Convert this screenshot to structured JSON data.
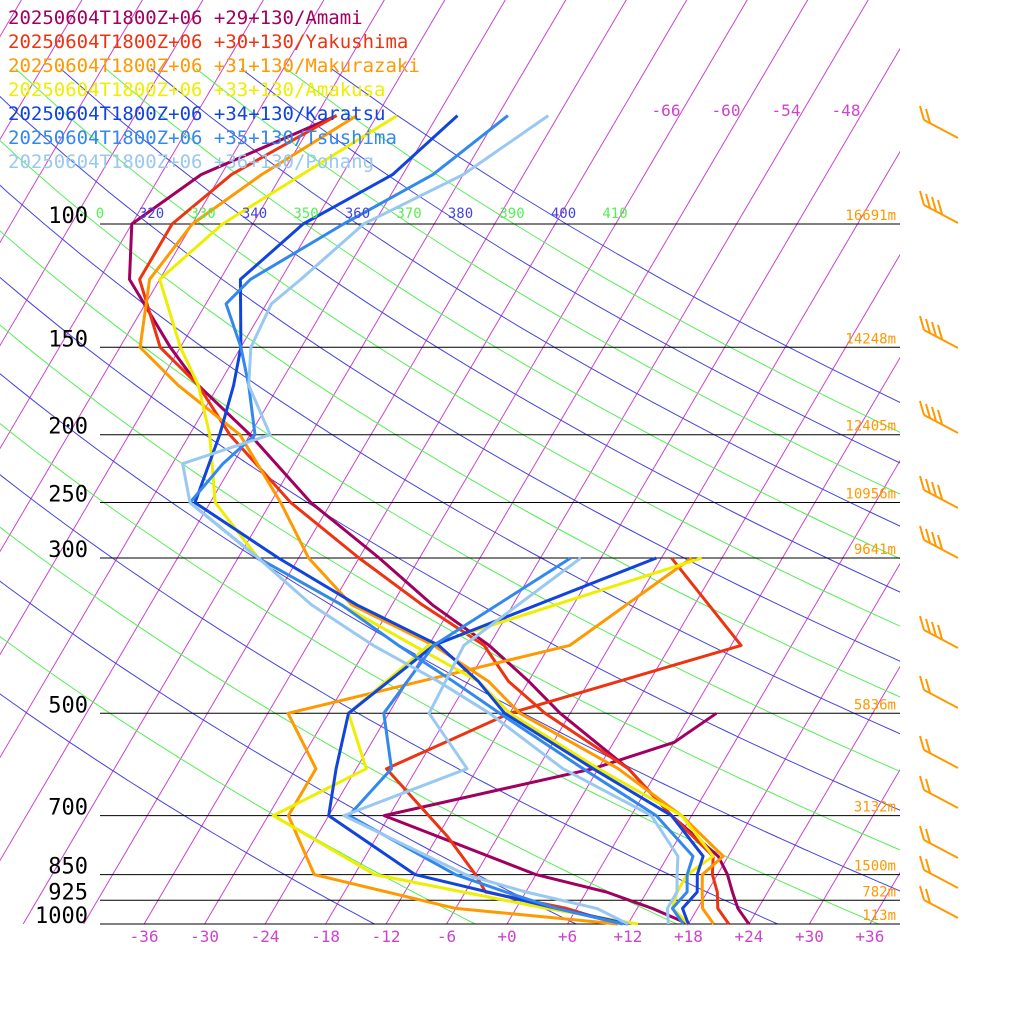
{
  "legend": [
    {
      "label": "20250604T1800Z+06 +29+130/Amami",
      "color": "#a0005f"
    },
    {
      "label": "20250604T1800Z+06 +30+130/Yakushima",
      "color": "#ee3311"
    },
    {
      "label": "20250604T1800Z+06 +31+130/Makurazaki",
      "color": "#ff9900"
    },
    {
      "label": "20250604T1800Z+06 +33+130/Amakusa",
      "color": "#eeee00"
    },
    {
      "label": "20250604T1800Z+06 +34+130/Karatsu",
      "color": "#1144dd"
    },
    {
      "label": "20250604T1800Z+06 +35+130/Tsushima",
      "color": "#3388ee"
    },
    {
      "label": "20250604T1800Z+06 +36+130/Pohang",
      "color": "#99c8f0"
    }
  ],
  "chart_data": {
    "type": "line",
    "chart_kind": "skew-T log-p sounding",
    "y_axis": {
      "unit": "hPa",
      "scale": "log",
      "range": [
        1000,
        100
      ],
      "labels": [
        "100",
        "150",
        "200",
        "250",
        "300",
        "500",
        "700",
        "850",
        "925",
        "1000"
      ],
      "levels": [
        100,
        150,
        200,
        250,
        300,
        500,
        700,
        850,
        925,
        1000
      ]
    },
    "x_axis": {
      "unit": "°C",
      "skewed": true,
      "tick_labels": [
        "-36",
        "-30",
        "-24",
        "-18",
        "-12",
        "-6",
        "+0",
        "+6",
        "+12",
        "+18",
        "+24",
        "+30",
        "+36"
      ],
      "tick_values": [
        -36,
        -30,
        -24,
        -18,
        -12,
        -6,
        0,
        6,
        12,
        18,
        24,
        30,
        36
      ],
      "upper_labels": [
        "-66",
        "-60",
        "-54",
        "-48"
      ]
    },
    "theta_labels": [
      {
        "text": "0",
        "color": "#55ee55"
      },
      {
        "text": "320",
        "color": "#4444dd"
      },
      {
        "text": "330",
        "color": "#55ee55"
      },
      {
        "text": "340",
        "color": "#4444dd"
      },
      {
        "text": "350",
        "color": "#55ee55"
      },
      {
        "text": "360",
        "color": "#4444dd"
      },
      {
        "text": "370",
        "color": "#55ee55"
      },
      {
        "text": "380",
        "color": "#4444dd"
      },
      {
        "text": "390",
        "color": "#55ee55"
      },
      {
        "text": "400",
        "color": "#4444dd"
      },
      {
        "text": "410",
        "color": "#55ee55"
      }
    ],
    "heights": [
      {
        "p": 100,
        "label": "16691m"
      },
      {
        "p": 150,
        "label": "14248m"
      },
      {
        "p": 200,
        "label": "12405m"
      },
      {
        "p": 250,
        "label": "10956m"
      },
      {
        "p": 300,
        "label": "9641m"
      },
      {
        "p": 500,
        "label": "5836m"
      },
      {
        "p": 700,
        "label": "3132m"
      },
      {
        "p": 850,
        "label": "1500m"
      },
      {
        "p": 925,
        "label": "782m"
      },
      {
        "p": 1000,
        "label": "113m"
      }
    ],
    "series": [
      {
        "name": "20250604T1800Z+06 +29+130/Amami",
        "color": "#a0005f",
        "temperature": [
          [
            1000,
            24.0
          ],
          [
            950,
            22.0
          ],
          [
            900,
            20.5
          ],
          [
            850,
            19.0
          ],
          [
            800,
            17.0
          ],
          [
            700,
            10.0
          ],
          [
            600,
            3.0
          ],
          [
            500,
            -7.0
          ],
          [
            450,
            -12.0
          ],
          [
            400,
            -18.0
          ],
          [
            350,
            -26.0
          ],
          [
            300,
            -34.0
          ],
          [
            250,
            -44.0
          ],
          [
            200,
            -54.0
          ],
          [
            170,
            -62.0
          ],
          [
            150,
            -67.0
          ],
          [
            120,
            -75.0
          ],
          [
            100,
            -78.0
          ],
          [
            85,
            -74.0
          ],
          [
            70,
            -64.0
          ]
        ],
        "dewpoint": [
          [
            1000,
            18.0
          ],
          [
            950,
            13.5
          ],
          [
            900,
            8.0
          ],
          [
            850,
            0.0
          ],
          [
            700,
            -18.5
          ],
          [
            600,
            -0.5
          ],
          [
            550,
            6.0
          ],
          [
            500,
            8.5
          ]
        ]
      },
      {
        "name": "20250604T1800Z+06 +30+130/Yakushima",
        "color": "#ee3311",
        "temperature": [
          [
            1000,
            22.0
          ],
          [
            950,
            20.0
          ],
          [
            900,
            19.0
          ],
          [
            850,
            17.5
          ],
          [
            800,
            16.5
          ],
          [
            700,
            10.0
          ],
          [
            600,
            3.0
          ],
          [
            500,
            -8.5
          ],
          [
            450,
            -14.0
          ],
          [
            400,
            -18.5
          ],
          [
            350,
            -27.0
          ],
          [
            300,
            -36.0
          ],
          [
            250,
            -46.0
          ],
          [
            200,
            -56.0
          ],
          [
            170,
            -62.0
          ],
          [
            150,
            -68.0
          ],
          [
            120,
            -74.0
          ],
          [
            100,
            -74.0
          ],
          [
            85,
            -71.0
          ],
          [
            70,
            -64.0
          ]
        ],
        "dewpoint": [
          [
            1000,
            11.0
          ],
          [
            950,
            5.0
          ],
          [
            900,
            -4.0
          ],
          [
            850,
            -6.0
          ],
          [
            750,
            -11.0
          ],
          [
            600,
            -21.0
          ],
          [
            500,
            -12.0
          ],
          [
            400,
            7.0
          ],
          [
            300,
            -5.0
          ]
        ]
      },
      {
        "name": "20250604T1800Z+06 +31+130/Makurazaki",
        "color": "#ff9900",
        "temperature": [
          [
            1000,
            20.5
          ],
          [
            950,
            18.5
          ],
          [
            900,
            17.5
          ],
          [
            850,
            16.5
          ],
          [
            800,
            17.5
          ],
          [
            700,
            11.0
          ],
          [
            600,
            2.0
          ],
          [
            500,
            -11.0
          ],
          [
            450,
            -16.0
          ],
          [
            400,
            -23.5
          ],
          [
            350,
            -34.0
          ],
          [
            300,
            -41.0
          ],
          [
            250,
            -47.0
          ],
          [
            200,
            -55.0
          ],
          [
            170,
            -64.0
          ],
          [
            150,
            -70.0
          ],
          [
            120,
            -73.0
          ],
          [
            100,
            -72.0
          ],
          [
            85,
            -68.0
          ],
          [
            70,
            -62.0
          ]
        ],
        "dewpoint": [
          [
            1000,
            11.0
          ],
          [
            950,
            -6.0
          ],
          [
            850,
            -22.0
          ],
          [
            700,
            -28.0
          ],
          [
            600,
            -28.0
          ],
          [
            500,
            -34.0
          ],
          [
            400,
            -10.0
          ],
          [
            300,
            -3.0
          ]
        ]
      },
      {
        "name": "20250604T1800Z+06 +33+130/Amakusa",
        "color": "#eeee00",
        "temperature": [
          [
            1000,
            18.0
          ],
          [
            950,
            15.5
          ],
          [
            900,
            15.0
          ],
          [
            850,
            15.0
          ],
          [
            800,
            16.5
          ],
          [
            700,
            11.0
          ],
          [
            600,
            0.0
          ],
          [
            500,
            -12.0
          ],
          [
            450,
            -17.0
          ],
          [
            400,
            -25.5
          ],
          [
            350,
            -35.0
          ],
          [
            300,
            -46.0
          ],
          [
            250,
            -53.5
          ],
          [
            200,
            -58.0
          ],
          [
            170,
            -62.0
          ],
          [
            150,
            -66.0
          ],
          [
            120,
            -72.0
          ],
          [
            100,
            -69.0
          ],
          [
            85,
            -64.0
          ],
          [
            70,
            -58.0
          ]
        ],
        "dewpoint": [
          [
            1000,
            13.0
          ],
          [
            950,
            3.0
          ],
          [
            850,
            -16.0
          ],
          [
            700,
            -29.5
          ],
          [
            600,
            -23.0
          ],
          [
            500,
            -28.0
          ],
          [
            400,
            -24.0
          ],
          [
            300,
            -2.0
          ]
        ]
      },
      {
        "name": "20250604T1800Z+06 +34+130/Karatsu",
        "color": "#1144dd",
        "temperature": [
          [
            1000,
            18.0
          ],
          [
            950,
            16.5
          ],
          [
            900,
            17.0
          ],
          [
            850,
            16.0
          ],
          [
            800,
            15.5
          ],
          [
            700,
            10.0
          ],
          [
            600,
            -0.5
          ],
          [
            500,
            -12.5
          ],
          [
            450,
            -17.0
          ],
          [
            400,
            -23.0
          ],
          [
            350,
            -33.5
          ],
          [
            300,
            -44.0
          ],
          [
            250,
            -55.5
          ],
          [
            200,
            -57.0
          ],
          [
            170,
            -58.5
          ],
          [
            150,
            -60.0
          ],
          [
            120,
            -64.0
          ],
          [
            100,
            -61.0
          ],
          [
            85,
            -55.0
          ],
          [
            70,
            -52.0
          ]
        ],
        "dewpoint": [
          [
            1000,
            12.0
          ],
          [
            950,
            4.0
          ],
          [
            850,
            -12.0
          ],
          [
            700,
            -24.0
          ],
          [
            600,
            -26.0
          ],
          [
            500,
            -28.0
          ],
          [
            400,
            -23.5
          ],
          [
            300,
            -6.5
          ]
        ]
      },
      {
        "name": "20250604T1800Z+06 +35+130/Tsushima",
        "color": "#3388ee",
        "temperature": [
          [
            1000,
            17.5
          ],
          [
            950,
            15.5
          ],
          [
            900,
            16.0
          ],
          [
            850,
            15.0
          ],
          [
            800,
            14.5
          ],
          [
            700,
            8.5
          ],
          [
            600,
            -1.5
          ],
          [
            500,
            -13.0
          ],
          [
            450,
            -19.5
          ],
          [
            400,
            -27.0
          ],
          [
            350,
            -35.0
          ],
          [
            300,
            -46.0
          ],
          [
            250,
            -56.0
          ],
          [
            220,
            -55.0
          ],
          [
            200,
            -53.5
          ],
          [
            170,
            -57.0
          ],
          [
            150,
            -60.0
          ],
          [
            130,
            -64.0
          ],
          [
            120,
            -63.0
          ],
          [
            100,
            -57.0
          ],
          [
            85,
            -51.0
          ],
          [
            70,
            -47.0
          ]
        ],
        "dewpoint": [
          [
            1000,
            11.5
          ],
          [
            950,
            4.0
          ],
          [
            900,
            -2.0
          ],
          [
            850,
            -8.0
          ],
          [
            700,
            -22.0
          ],
          [
            600,
            -20.5
          ],
          [
            500,
            -24.5
          ],
          [
            400,
            -23.5
          ],
          [
            300,
            -15.0
          ]
        ]
      },
      {
        "name": "20250604T1800Z+06 +36+130/Pohang",
        "color": "#99c8f0",
        "temperature": [
          [
            1000,
            16.0
          ],
          [
            950,
            15.0
          ],
          [
            900,
            15.0
          ],
          [
            850,
            14.0
          ],
          [
            800,
            13.0
          ],
          [
            700,
            8.0
          ],
          [
            600,
            -3.5
          ],
          [
            500,
            -14.0
          ],
          [
            450,
            -21.0
          ],
          [
            400,
            -29.5
          ],
          [
            350,
            -38.0
          ],
          [
            300,
            -46.0
          ],
          [
            250,
            -56.0
          ],
          [
            220,
            -59.0
          ],
          [
            200,
            -52.0
          ],
          [
            170,
            -57.0
          ],
          [
            150,
            -59.0
          ],
          [
            130,
            -59.5
          ],
          [
            120,
            -58.0
          ],
          [
            100,
            -55.0
          ],
          [
            85,
            -48.0
          ],
          [
            70,
            -43.0
          ]
        ],
        "dewpoint": [
          [
            1000,
            12.0
          ],
          [
            950,
            8.0
          ],
          [
            900,
            0.0
          ],
          [
            850,
            -7.0
          ],
          [
            700,
            -22.5
          ],
          [
            600,
            -13.0
          ],
          [
            500,
            -20.0
          ],
          [
            400,
            -20.5
          ],
          [
            300,
            -14.0
          ]
        ]
      }
    ]
  }
}
